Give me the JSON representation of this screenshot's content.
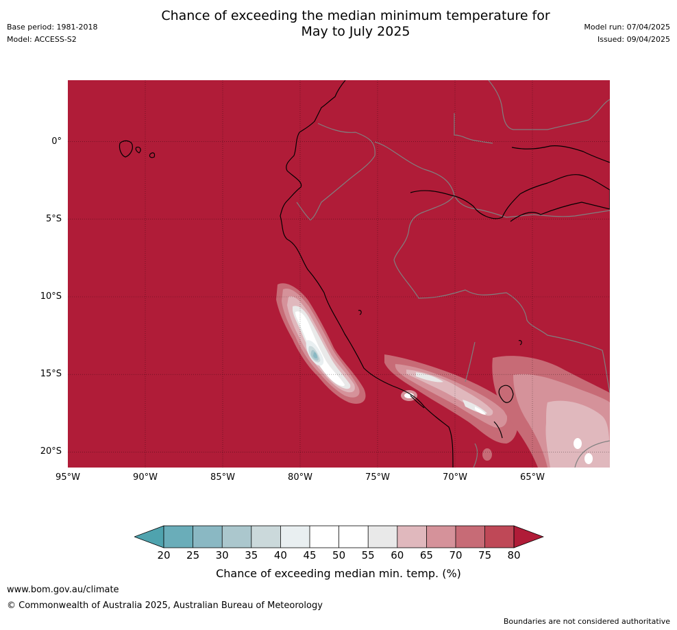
{
  "header": {
    "title_line1": "Chance of exceeding the median minimum temperature for",
    "title_line2": "May to July 2025",
    "base_period": "Base period: 1981-2018",
    "model": "Model: ACCESS-S2",
    "model_run": "Model run: 07/04/2025",
    "issued": "Issued: 09/04/2025"
  },
  "map": {
    "region": "Western South America (Peru / Ecuador)",
    "lat_labels": [
      "0°",
      "5°S",
      "10°S",
      "15°S",
      "20°S"
    ],
    "lon_labels": [
      "95°W",
      "90°W",
      "85°W",
      "80°W",
      "75°W",
      "70°W",
      "65°W"
    ],
    "dominant_category": "80",
    "colors": {
      "c20": "#4fa3ae",
      "c25": "#6aadb9",
      "c30": "#8ab8c3",
      "c35": "#abc7cd",
      "c40": "#cbd9db",
      "c45": "#e9eff1",
      "c50": "#ffffff",
      "c55": "#ffffff",
      "c60": "#e9e9e9",
      "c65": "#e0b8bd",
      "c70": "#d5929a",
      "c75": "#c76b76",
      "c80": "#bf4857",
      "c80plus": "#b01c38",
      "coast": "#000000",
      "border": "#808080"
    }
  },
  "colorbar": {
    "ticks": [
      "20",
      "25",
      "30",
      "35",
      "40",
      "45",
      "50",
      "55",
      "60",
      "65",
      "70",
      "75",
      "80"
    ],
    "label": "Chance of exceeding median min. temp. (%)"
  },
  "footer": {
    "url": "www.bom.gov.au/climate",
    "copyright": "© Commonwealth of Australia 2025, Australian Bureau of Meteorology",
    "disclaimer": "Boundaries are not considered authoritative"
  }
}
